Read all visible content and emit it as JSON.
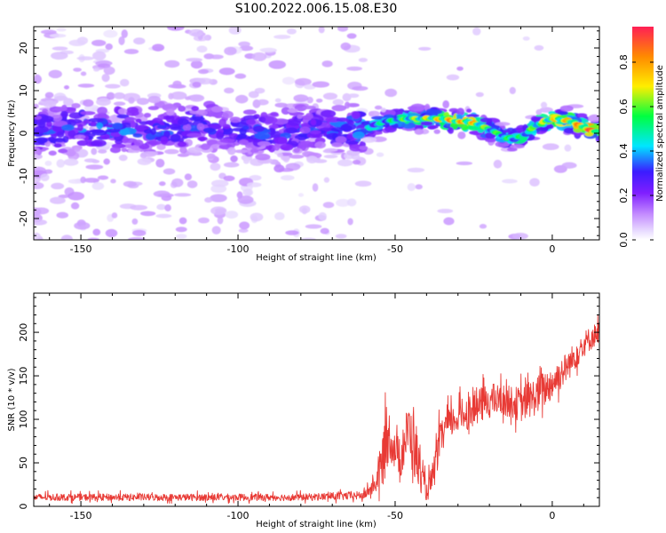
{
  "title": "S100.2022.006.15.08.E30",
  "colors": {
    "snr_line": "#e83a35",
    "cmap": [
      "#ffffff",
      "#e9ddff",
      "#c48cff",
      "#7f1fff",
      "#3b1cff",
      "#00e6ff",
      "#00ff40",
      "#ffee00",
      "#ff8a00",
      "#ff1f55"
    ]
  },
  "chart_data": [
    {
      "type": "heatmap",
      "name": "spectrogram",
      "x_ticks": [
        -150,
        -100,
        -50,
        0
      ],
      "y_ticks": [
        -20,
        -10,
        0,
        10,
        20
      ],
      "xlabel": "Height of straight line (km)",
      "ylabel": "Frequency (Hz)",
      "xlim": [
        -165,
        15
      ],
      "ylim": [
        -25,
        25
      ],
      "colorbar": {
        "label": "Normalized spectral amplitude",
        "ticks": [
          0.0,
          0.2,
          0.4,
          0.6,
          0.8
        ],
        "tick_labels": [
          "0.0",
          "0.2",
          "0.4",
          "0.6",
          "0.8"
        ],
        "lim": [
          0,
          0.96
        ]
      },
      "ridge": {
        "x": [
          -165,
          -150,
          -130,
          -110,
          -90,
          -70,
          -60,
          -52,
          -45,
          -38,
          -32,
          -25,
          -20,
          -15,
          -12,
          -8,
          -5,
          0,
          5,
          10,
          13
        ],
        "frequency": [
          0.5,
          1.5,
          1.0,
          2.0,
          0.0,
          1.5,
          1.0,
          3.0,
          3.5,
          3.5,
          3.0,
          2.5,
          1.0,
          -1.0,
          -1.5,
          0.0,
          2.0,
          3.5,
          3.0,
          1.5,
          0.5
        ],
        "amplitude": [
          0.35,
          0.4,
          0.38,
          0.35,
          0.35,
          0.38,
          0.45,
          0.55,
          0.65,
          0.75,
          0.85,
          0.8,
          0.6,
          0.6,
          0.55,
          0.6,
          0.65,
          0.75,
          0.8,
          0.88,
          0.95
        ]
      }
    },
    {
      "type": "line",
      "name": "snr",
      "x_ticks": [
        -150,
        -100,
        -50,
        0
      ],
      "y_ticks": [
        0,
        50,
        100,
        150,
        200
      ],
      "xlabel": "Height of straight line (km)",
      "ylabel": "SNR (10 * v/v)",
      "xlim": [
        -165,
        15
      ],
      "ylim": [
        0,
        245
      ],
      "envelope": {
        "x": [
          -165,
          -120,
          -80,
          -60,
          -56,
          -54,
          -52,
          -50,
          -48,
          -46,
          -44,
          -42,
          -40,
          -38,
          -36,
          -34,
          -32,
          -30,
          -25,
          -20,
          -15,
          -10,
          -5,
          0,
          5,
          10,
          15
        ],
        "baseline": [
          10,
          10,
          10,
          12,
          25,
          50,
          80,
          60,
          55,
          85,
          70,
          35,
          15,
          30,
          70,
          90,
          95,
          100,
          110,
          120,
          120,
          115,
          125,
          140,
          160,
          185,
          200
        ],
        "spread": [
          8,
          8,
          8,
          10,
          20,
          70,
          60,
          40,
          50,
          60,
          90,
          40,
          20,
          40,
          40,
          35,
          35,
          35,
          40,
          40,
          35,
          40,
          45,
          40,
          35,
          30,
          25
        ]
      }
    }
  ]
}
